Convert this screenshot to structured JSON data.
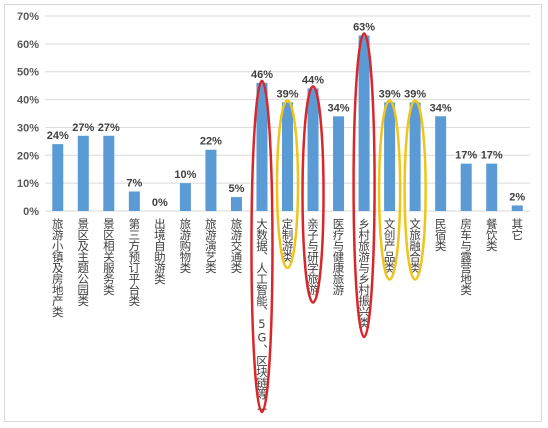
{
  "chart_data": {
    "type": "bar",
    "categories": [
      "旅游小镇及房地产类",
      "景区及主题公园类",
      "景区相关服务类",
      "第三方预订平台类",
      "出境自助游类",
      "旅游购物类",
      "旅游演艺类",
      "旅游交通类",
      "大数据、人工智能、5G、区块链等…",
      "定制游类",
      "亲子与研学旅游",
      "医疗与健康旅游",
      "乡村旅游与乡村振兴类",
      "文创产品类",
      "文旅融合类",
      "民宿类",
      "房车与露营地类",
      "餐饮类",
      "其它"
    ],
    "values": [
      24,
      27,
      27,
      7,
      0,
      10,
      22,
      5,
      46,
      39,
      44,
      34,
      63,
      39,
      39,
      34,
      17,
      17,
      2
    ],
    "data_labels": [
      "24%",
      "27%",
      "27%",
      "7%",
      "0%",
      "10%",
      "22%",
      "5%",
      "46%",
      "39%",
      "44%",
      "34%",
      "63%",
      "39%",
      "39%",
      "34%",
      "17%",
      "17%",
      "2%"
    ],
    "ytick_labels": [
      "0%",
      "10%",
      "20%",
      "30%",
      "40%",
      "50%",
      "60%",
      "70%"
    ],
    "ylim": [
      0,
      70
    ],
    "ytick_step": 10,
    "grid": true,
    "legend": "none",
    "bar_color": "#5b9bd5",
    "grid_color": "#d9d9d9",
    "highlights": [
      {
        "category_index": 8,
        "color": "#d9262b"
      },
      {
        "category_index": 9,
        "color": "#f0c419"
      },
      {
        "category_index": 10,
        "color": "#d9262b"
      },
      {
        "category_index": 12,
        "color": "#d9262b"
      },
      {
        "category_index": 13,
        "color": "#f0c419"
      },
      {
        "category_index": 14,
        "color": "#f0c419"
      }
    ]
  }
}
